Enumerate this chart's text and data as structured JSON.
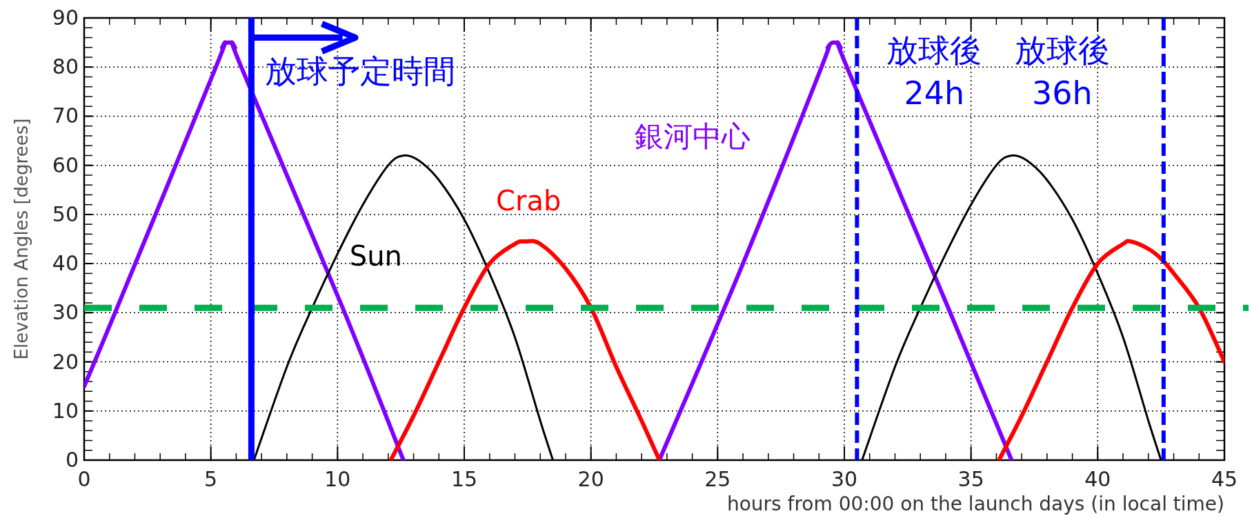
{
  "chart_data": {
    "type": "line",
    "xlabel": "hours from 00:00 on the launch days (in local time)",
    "ylabel": "Elevation Angles [degrees]",
    "xlim": [
      0,
      45
    ],
    "ylim": [
      0,
      90
    ],
    "xticks": [
      0,
      5,
      10,
      15,
      20,
      25,
      30,
      35,
      40,
      45
    ],
    "yticks": [
      0,
      10,
      20,
      30,
      40,
      50,
      60,
      70,
      80,
      90
    ],
    "grid": true,
    "legend": false,
    "marker": "none",
    "line_style": "solid",
    "series": [
      {
        "name": "銀河中心",
        "color": "#8000ff",
        "x": [
          0,
          1.3,
          5.2,
          5.45,
          5.7,
          5.95,
          6.2,
          10.2,
          12.6,
          17,
          22.7,
          26,
          29.1,
          29.35,
          29.6,
          29.85,
          30.1,
          34.1,
          36.6
        ],
        "values": [
          15,
          31,
          80,
          84,
          85,
          84,
          80,
          31,
          0,
          null,
          0,
          40,
          80,
          84,
          85,
          84,
          80,
          31,
          0
        ]
      },
      {
        "name": "Sun",
        "color": "#000000",
        "x": [
          6.7,
          8,
          9,
          10,
          11,
          12,
          12.6,
          13.2,
          14,
          15,
          16,
          17,
          18,
          18.5,
          24,
          30.7,
          32,
          33,
          34,
          35,
          36,
          36.6,
          37.2,
          38,
          39,
          40,
          41,
          42,
          42.5
        ],
        "values": [
          0,
          19,
          31,
          42,
          52,
          60,
          62,
          61,
          57,
          49,
          38,
          25,
          8,
          0,
          null,
          0,
          19,
          31,
          42,
          52,
          60,
          62,
          61,
          57,
          49,
          38,
          25,
          8,
          0
        ]
      },
      {
        "name": "Crab",
        "color": "#ff0000",
        "x": [
          12.1,
          13,
          14,
          15,
          16,
          17,
          17.4,
          18,
          19,
          20,
          21,
          22,
          22.7,
          30,
          36.1,
          37,
          38,
          39,
          40,
          41,
          41.3,
          42,
          42.5,
          43,
          44,
          45
        ],
        "values": [
          0,
          9,
          20,
          31,
          40,
          44,
          44.5,
          44,
          39,
          31,
          19,
          8,
          0,
          null,
          0,
          9,
          20,
          31,
          40,
          44,
          44.5,
          43,
          41,
          38,
          31,
          20
        ]
      }
    ],
    "ref_lines": [
      {
        "axis": "y",
        "value": 31,
        "color": "#00b050",
        "line_style": "dashed"
      },
      {
        "axis": "x",
        "value": 6.6,
        "color": "#0000ff",
        "line_style": "solid",
        "label": "放球予定時間"
      },
      {
        "axis": "x",
        "value": 30.5,
        "color": "#0000ff",
        "line_style": "dashed",
        "label": "放球後\n24h"
      },
      {
        "axis": "x",
        "value": 42.6,
        "color": "#0000ff",
        "line_style": "dashed",
        "label": "放球後\n36h"
      }
    ]
  }
}
